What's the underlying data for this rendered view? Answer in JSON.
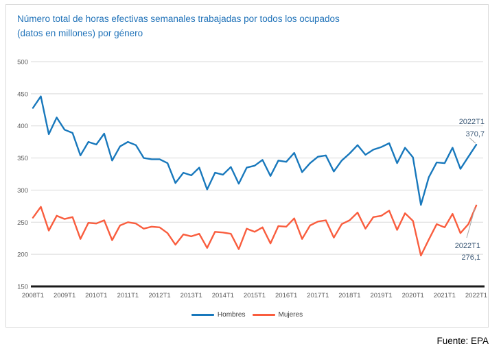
{
  "title": {
    "line1": "Número total de horas efectivas semanales trabajadas por todos los ocupados",
    "line2": "(datos en millones) por género",
    "color": "#2173B9"
  },
  "source": "Fuente: EPA",
  "colors": {
    "title": "#2173B9",
    "hombres": "#1878BC",
    "mujeres": "#F95D3E",
    "grid": "#D9D9D9",
    "axis": "#1A1A1A",
    "tick_label": "#595959",
    "annotation_text": "#3A5775",
    "leader_line": "#A6A6A6",
    "border": "#D9D9D9"
  },
  "legend": {
    "position": "bottom",
    "items": [
      {
        "label": "Hombres",
        "color": "#1878BC"
      },
      {
        "label": "Mujeres",
        "color": "#F95D3E"
      }
    ]
  },
  "chart_data": {
    "type": "line",
    "title": "Número total de horas efectivas semanales trabajadas por todos los ocupados (datos en millones) por género",
    "x_start": "2008T1",
    "x_end": "2022T1",
    "x_frequency": "quarterly",
    "x_tick_labels": [
      "2008T1",
      "2009T1",
      "2010T1",
      "2011T1",
      "2012T1",
      "2013T1",
      "2014T1",
      "2015T1",
      "2016T1",
      "2017T1",
      "2018T1",
      "2019T1",
      "2020T1",
      "2021T1",
      "2022T1"
    ],
    "y_ticks": [
      150,
      200,
      250,
      300,
      350,
      400,
      450,
      500
    ],
    "ylim": [
      150,
      500
    ],
    "grid": true,
    "legend_position": "bottom",
    "series": [
      {
        "name": "Hombres",
        "color": "#1878BC",
        "values": [
          428,
          446,
          387,
          413,
          394,
          389,
          354,
          375,
          371,
          388,
          346,
          368,
          375,
          370,
          350,
          348,
          348,
          342,
          311,
          327,
          323,
          335,
          301,
          327,
          324,
          336,
          310,
          335,
          338,
          347,
          322,
          346,
          344,
          358,
          328,
          342,
          352,
          354,
          329,
          346,
          357,
          370,
          355,
          363,
          367,
          373,
          342,
          366,
          351,
          277,
          320,
          343,
          342,
          366,
          333,
          352,
          370.7
        ]
      },
      {
        "name": "Mujeres",
        "color": "#F95D3E",
        "values": [
          257,
          274,
          237,
          260,
          255,
          258,
          224,
          249,
          248,
          253,
          222,
          245,
          250,
          248,
          240,
          243,
          242,
          233,
          215,
          231,
          228,
          232,
          210,
          235,
          234,
          232,
          208,
          240,
          235,
          242,
          217,
          244,
          243,
          256,
          224,
          245,
          251,
          253,
          226,
          247,
          253,
          265,
          240,
          258,
          260,
          268,
          238,
          264,
          252,
          198,
          223,
          247,
          242,
          263,
          233,
          247,
          276.1
        ]
      }
    ],
    "annotations": [
      {
        "series": "Hombres",
        "line1": "2022T1",
        "line2": "370,7"
      },
      {
        "series": "Mujeres",
        "line1": "2022T1",
        "line2": "276,1"
      }
    ]
  }
}
